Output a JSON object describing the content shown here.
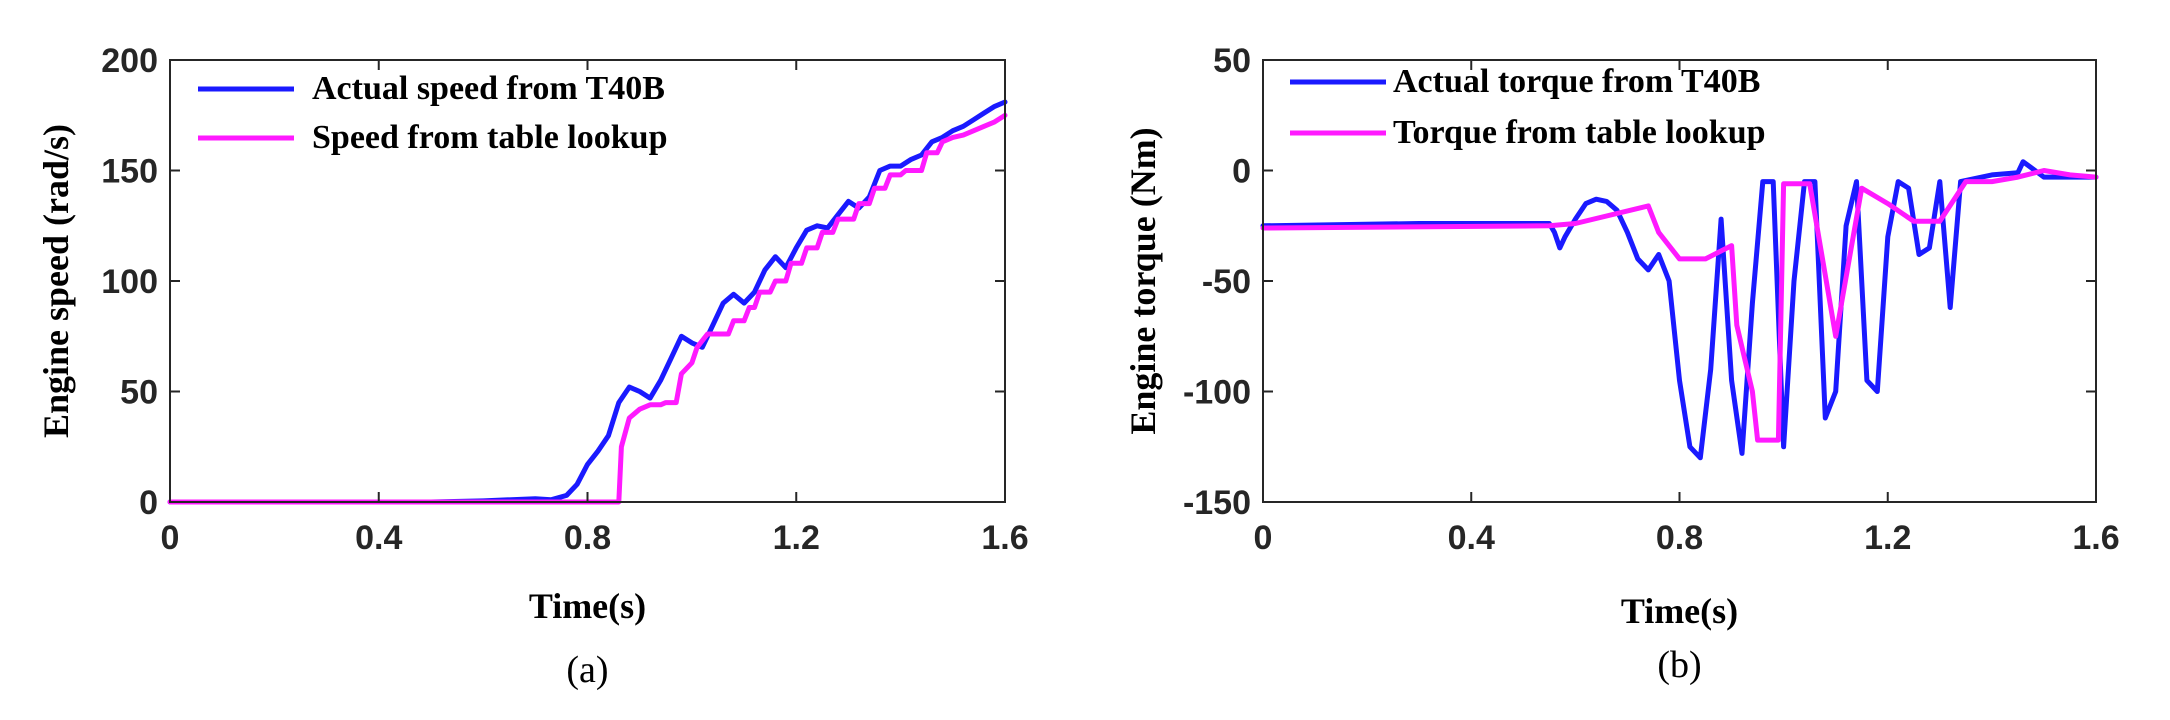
{
  "chart_data": [
    {
      "type": "line",
      "panel_label": "(a)",
      "xlabel": "Time(s)",
      "ylabel": "Engine speed (rad/s)",
      "xlim": [
        0,
        1.6
      ],
      "ylim": [
        0,
        200
      ],
      "xticks": [
        "0",
        "0.4",
        "0.8",
        "1.2",
        "1.6"
      ],
      "xtick_values": [
        0,
        0.4,
        0.8,
        1.2,
        1.6
      ],
      "yticks": [
        "0",
        "50",
        "100",
        "150",
        "200"
      ],
      "ytick_values": [
        0,
        50,
        100,
        150,
        200
      ],
      "legend_position": "top-left",
      "grid": false,
      "series": [
        {
          "name": "Actual speed from T40B",
          "color": "#1a1aff",
          "x": [
            0,
            0.5,
            0.6,
            0.7,
            0.73,
            0.76,
            0.78,
            0.8,
            0.82,
            0.84,
            0.86,
            0.88,
            0.9,
            0.92,
            0.94,
            0.96,
            0.98,
            1.0,
            1.02,
            1.04,
            1.06,
            1.08,
            1.1,
            1.12,
            1.14,
            1.16,
            1.18,
            1.2,
            1.22,
            1.24,
            1.26,
            1.28,
            1.3,
            1.32,
            1.34,
            1.36,
            1.38,
            1.4,
            1.42,
            1.44,
            1.46,
            1.48,
            1.5,
            1.52,
            1.54,
            1.56,
            1.58,
            1.6
          ],
          "y": [
            0,
            0,
            0.5,
            1.5,
            1,
            3,
            8,
            17,
            23,
            30,
            45,
            52,
            50,
            47,
            55,
            65,
            75,
            72,
            70,
            80,
            90,
            94,
            90,
            95,
            105,
            111,
            106,
            115,
            123,
            125,
            124,
            130,
            136,
            133,
            138,
            150,
            152,
            152,
            155,
            157,
            163,
            165,
            168,
            170,
            173,
            176,
            179,
            181
          ]
        },
        {
          "name": "Speed from table lookup",
          "color": "#ff1aff",
          "x": [
            0,
            0.86,
            0.865,
            0.88,
            0.9,
            0.92,
            0.94,
            0.95,
            0.97,
            0.98,
            1.0,
            1.01,
            1.03,
            1.07,
            1.08,
            1.1,
            1.11,
            1.12,
            1.13,
            1.15,
            1.16,
            1.18,
            1.19,
            1.21,
            1.22,
            1.24,
            1.25,
            1.27,
            1.28,
            1.31,
            1.32,
            1.34,
            1.35,
            1.37,
            1.38,
            1.4,
            1.41,
            1.44,
            1.45,
            1.47,
            1.48,
            1.5,
            1.52,
            1.54,
            1.56,
            1.58,
            1.6
          ],
          "y": [
            0,
            0,
            25,
            38,
            42,
            44,
            44,
            45,
            45,
            58,
            63,
            70,
            76,
            76,
            82,
            82,
            88,
            88,
            95,
            95,
            100,
            100,
            108,
            108,
            115,
            115,
            122,
            122,
            128,
            128,
            135,
            135,
            142,
            142,
            148,
            148,
            150,
            150,
            158,
            158,
            163,
            165,
            166,
            168,
            170,
            172,
            175
          ]
        }
      ]
    },
    {
      "type": "line",
      "panel_label": "(b)",
      "xlabel": "Time(s)",
      "ylabel": "Engine torque (Nm)",
      "xlim": [
        0,
        1.6
      ],
      "ylim": [
        -150,
        50
      ],
      "xticks": [
        "0",
        "0.4",
        "0.8",
        "1.2",
        "1.6"
      ],
      "xtick_values": [
        0,
        0.4,
        0.8,
        1.2,
        1.6
      ],
      "yticks": [
        "-150",
        "-100",
        "-50",
        "0",
        "50"
      ],
      "ytick_values": [
        -150,
        -100,
        -50,
        0,
        50
      ],
      "legend_position": "top-left",
      "grid": false,
      "series": [
        {
          "name": "Actual torque from T40B",
          "color": "#1a1aff",
          "x": [
            0,
            0.3,
            0.55,
            0.56,
            0.57,
            0.58,
            0.6,
            0.62,
            0.64,
            0.66,
            0.68,
            0.7,
            0.72,
            0.74,
            0.76,
            0.78,
            0.8,
            0.82,
            0.84,
            0.86,
            0.88,
            0.9,
            0.92,
            0.94,
            0.96,
            0.98,
            1.0,
            1.02,
            1.04,
            1.06,
            1.08,
            1.1,
            1.12,
            1.14,
            1.16,
            1.18,
            1.2,
            1.22,
            1.24,
            1.26,
            1.28,
            1.3,
            1.32,
            1.34,
            1.4,
            1.45,
            1.46,
            1.5,
            1.6
          ],
          "y": [
            -25,
            -24,
            -24,
            -28,
            -35,
            -30,
            -22,
            -15,
            -13,
            -14,
            -18,
            -28,
            -40,
            -45,
            -38,
            -50,
            -95,
            -125,
            -130,
            -90,
            -22,
            -95,
            -128,
            -60,
            -5,
            -5,
            -125,
            -50,
            -5,
            -5,
            -112,
            -100,
            -25,
            -5,
            -95,
            -100,
            -30,
            -5,
            -8,
            -38,
            -35,
            -5,
            -62,
            -5,
            -2,
            -1,
            4,
            -3,
            -3
          ]
        },
        {
          "name": "Torque from table lookup",
          "color": "#ff1aff",
          "x": [
            0,
            0.55,
            0.6,
            0.74,
            0.76,
            0.8,
            0.85,
            0.9,
            0.91,
            0.94,
            0.95,
            0.98,
            0.99,
            1.0,
            1.05,
            1.1,
            1.15,
            1.2,
            1.25,
            1.3,
            1.35,
            1.4,
            1.45,
            1.5,
            1.55,
            1.6
          ],
          "y": [
            -26,
            -25,
            -24,
            -16,
            -28,
            -40,
            -40,
            -34,
            -70,
            -100,
            -122,
            -122,
            -122,
            -6,
            -6,
            -75,
            -8,
            -15,
            -23,
            -23,
            -5,
            -5,
            -3,
            0,
            -2,
            -3
          ]
        }
      ]
    }
  ]
}
